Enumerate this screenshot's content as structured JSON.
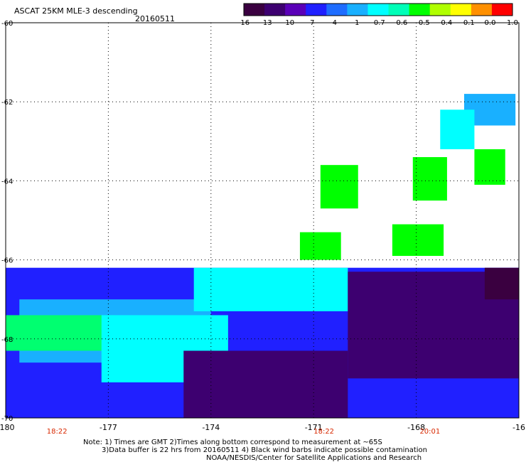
{
  "header": {
    "title": "ASCAT 25KM MLE-3 descending",
    "date": "20160511"
  },
  "colorbar": {
    "labels": [
      "-16",
      "-13",
      "-10",
      "-7",
      "-4",
      "-1",
      "-0.7",
      "-0.6",
      "-0.5",
      "-0.4",
      "-0.1",
      "0.0",
      "1.0"
    ],
    "colors": [
      "#3a0040",
      "#3d0070",
      "#5a00b8",
      "#2020ff",
      "#1f6dff",
      "#19b0ff",
      "#00ffff",
      "#00ffb8",
      "#00ff00",
      "#b0ff00",
      "#ffff00",
      "#ff9000",
      "#ff0000"
    ]
  },
  "notes": {
    "line1": "Note: 1) Times are GMT 2)Times along bottom correspond to measurement at ~65S",
    "line2": "3)Data buffer is 22 hrs from 20160511 4) Black wind barbs indicate possible contamination",
    "line3": "NOAA/NESDIS/Center for Satellite Applications and Research"
  },
  "chart_data": {
    "type": "heatmap",
    "title": "ASCAT 25KM MLE-3 descending",
    "subtitle": "20160511",
    "x_ticks": [
      "-180",
      "-177",
      "-174",
      "-171",
      "-168",
      "-16"
    ],
    "y_ticks": [
      "-60",
      "-62",
      "-64",
      "-66",
      "-68",
      "-70"
    ],
    "xlim": [
      -180,
      -165
    ],
    "ylim": [
      -70,
      -60
    ],
    "grid": true,
    "time_labels": [
      {
        "lon": -178.5,
        "text": "18:22"
      },
      {
        "lon": -170.7,
        "text": "18:22"
      },
      {
        "lon": -167.6,
        "text": "20:01"
      }
    ],
    "colorbar_values": [
      "-16",
      "-13",
      "-10",
      "-7",
      "-4",
      "-1",
      "-0.7",
      "-0.6",
      "-0.5",
      "-0.4",
      "-0.1",
      "0.0",
      "1.0"
    ],
    "patches": [
      {
        "lon": [
          -166.6,
          -165.1
        ],
        "lat": [
          -62.6,
          -61.8
        ],
        "color": "#19b0ff"
      },
      {
        "lon": [
          -167.3,
          -166.3
        ],
        "lat": [
          -63.2,
          -62.2
        ],
        "color": "#00ffff"
      },
      {
        "lon": [
          -166.3,
          -165.4
        ],
        "lat": [
          -64.1,
          -63.2
        ],
        "color": "#00ff00"
      },
      {
        "lon": [
          -168.1,
          -167.1
        ],
        "lat": [
          -64.5,
          -63.4
        ],
        "color": "#00ff00"
      },
      {
        "lon": [
          -170.8,
          -169.7
        ],
        "lat": [
          -64.7,
          -63.6
        ],
        "color": "#00ff00"
      },
      {
        "lon": [
          -171.4,
          -170.2
        ],
        "lat": [
          -66.0,
          -65.3
        ],
        "color": "#00ff00"
      },
      {
        "lon": [
          -168.7,
          -167.2
        ],
        "lat": [
          -65.9,
          -65.1
        ],
        "color": "#00ff00"
      },
      {
        "lon": [
          -180.0,
          -165.0
        ],
        "lat": [
          -70.0,
          -66.2
        ],
        "color": "#2020ff"
      },
      {
        "lon": [
          -179.6,
          -174.0
        ],
        "lat": [
          -68.6,
          -67.0
        ],
        "color": "#19b0ff"
      },
      {
        "lon": [
          -180.0,
          -176.8
        ],
        "lat": [
          -68.3,
          -67.4
        ],
        "color": "#00ff70"
      },
      {
        "lon": [
          -177.2,
          -173.5
        ],
        "lat": [
          -69.1,
          -67.4
        ],
        "color": "#00ffff"
      },
      {
        "lon": [
          -174.5,
          -170.0
        ],
        "lat": [
          -67.3,
          -66.2
        ],
        "color": "#00ffff"
      },
      {
        "lon": [
          -174.8,
          -170.0
        ],
        "lat": [
          -70.0,
          -68.3
        ],
        "color": "#3d0070"
      },
      {
        "lon": [
          -170.0,
          -165.0
        ],
        "lat": [
          -69.0,
          -66.3
        ],
        "color": "#3d0070"
      },
      {
        "lon": [
          -166.0,
          -165.0
        ],
        "lat": [
          -67.0,
          -66.2
        ],
        "color": "#3a0040"
      }
    ]
  }
}
